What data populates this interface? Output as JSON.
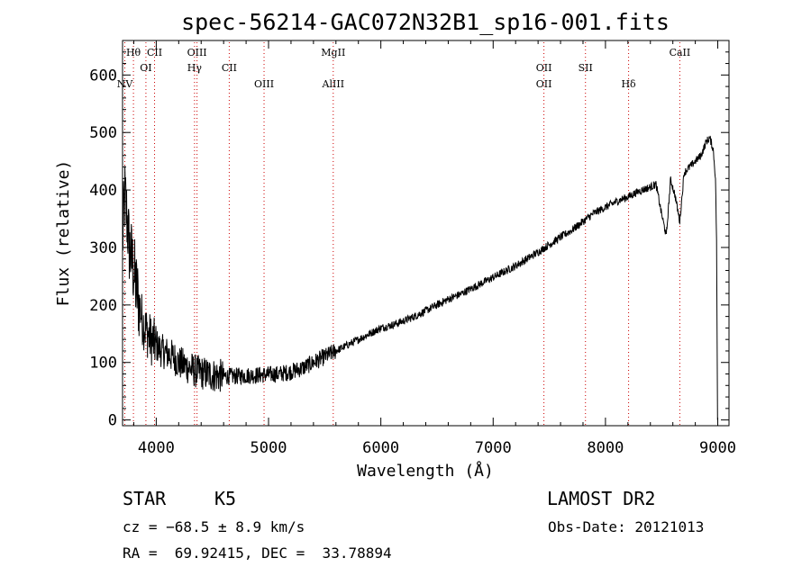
{
  "chart_data": {
    "type": "line",
    "title": "spec-56214-GAC072N32B1_sp16-001.fits",
    "xlabel": "Wavelength (Å)",
    "ylabel": "Flux (relative)",
    "xlim": [
      3700,
      9100
    ],
    "ylim": [
      -10,
      660
    ],
    "xticks": [
      4000,
      5000,
      6000,
      7000,
      8000,
      9000
    ],
    "yticks": [
      0,
      100,
      200,
      300,
      400,
      500,
      600
    ],
    "grid": false,
    "lines": [
      {
        "label": "Hθ",
        "wl": 3797,
        "row": 0
      },
      {
        "label": "NV",
        "wl": 3720,
        "row": 2
      },
      {
        "label": "OI",
        "wl": 3908,
        "row": 1
      },
      {
        "label": "CII",
        "wl": 3985,
        "row": 0
      },
      {
        "label": "OIII",
        "wl": 4363,
        "row": 0
      },
      {
        "label": "Hγ",
        "wl": 4341,
        "row": 1
      },
      {
        "label": "CII",
        "wl": 4650,
        "row": 1
      },
      {
        "label": "OIII",
        "wl": 4960,
        "row": 2
      },
      {
        "label": "MgII",
        "wl": 5576,
        "row": 0
      },
      {
        "label": "AlIII",
        "wl": 5576,
        "row": 2
      },
      {
        "label": "OII",
        "wl": 7452,
        "row": 1
      },
      {
        "label": "OII",
        "wl": 7452,
        "row": 2
      },
      {
        "label": "SII",
        "wl": 7822,
        "row": 1
      },
      {
        "label": "Hδ",
        "wl": 8206,
        "row": 2
      },
      {
        "label": "CaII",
        "wl": 8662,
        "row": 0
      }
    ],
    "series": [
      {
        "x": [
          3700,
          3720,
          3740,
          3760,
          3780,
          3800,
          3820,
          3850,
          3880,
          3900,
          3950,
          4000,
          4050,
          4100,
          4150,
          4200,
          4250,
          4300,
          4350,
          4400,
          4450,
          4500,
          4600,
          4700,
          4800,
          4900,
          5000,
          5100,
          5200,
          5300,
          5400,
          5500,
          5600,
          5700,
          5800,
          5900,
          6000,
          6100,
          6200,
          6300,
          6400,
          6500,
          6600,
          6700,
          6800,
          6900,
          7000,
          7100,
          7200,
          7300,
          7400,
          7500,
          7600,
          7700,
          7800,
          7900,
          8000,
          8100,
          8200,
          8300,
          8400,
          8450,
          8498,
          8542,
          8580,
          8620,
          8662,
          8700,
          8750,
          8800,
          8850,
          8900,
          8930,
          8960,
          8980,
          8990
        ],
        "y": [
          310,
          390,
          350,
          300,
          280,
          260,
          230,
          200,
          170,
          160,
          140,
          130,
          120,
          115,
          110,
          100,
          95,
          90,
          85,
          82,
          80,
          78,
          76,
          76,
          77,
          78,
          79,
          80,
          84,
          90,
          100,
          110,
          120,
          130,
          140,
          150,
          160,
          165,
          172,
          180,
          190,
          200,
          210,
          218,
          228,
          238,
          248,
          258,
          268,
          280,
          292,
          305,
          318,
          330,
          345,
          360,
          370,
          380,
          388,
          398,
          405,
          410,
          360,
          320,
          418,
          390,
          345,
          430,
          440,
          450,
          460,
          485,
          490,
          470,
          420,
          300
        ]
      }
    ]
  },
  "info": {
    "object_class": "STAR",
    "subclass": "K5",
    "redshift": "cz = −68.5 ± 8.9 km/s",
    "coords": "RA =  69.92415, DEC =  33.78894",
    "survey": "LAMOST DR2",
    "obs_date": "Obs-Date: 20121013"
  }
}
